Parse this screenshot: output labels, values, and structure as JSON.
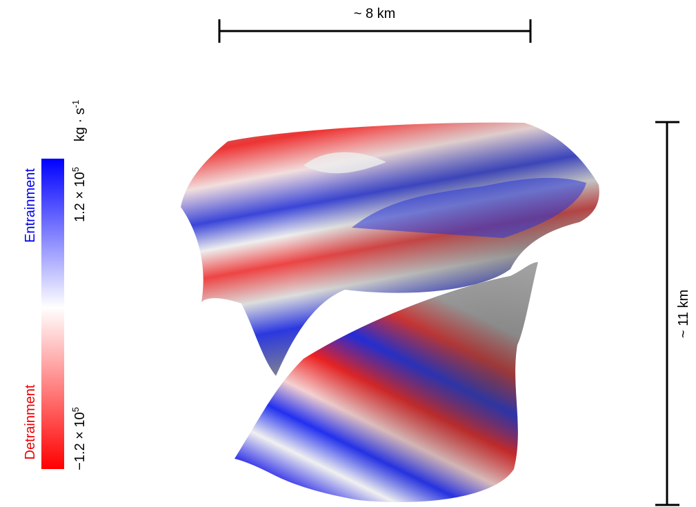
{
  "scale_bars": {
    "horizontal": {
      "label": "~ 8 km"
    },
    "vertical": {
      "label": "~ 11 km"
    }
  },
  "colorbar": {
    "top_label": "Entrainment",
    "bottom_label": "Detrainment",
    "max_label": {
      "base": "1.2 × 10",
      "exponent": "5"
    },
    "min_label": {
      "base": "−1.2 × 10",
      "exponent": "5"
    },
    "unit": {
      "base": "kg · s",
      "exponent": "-1"
    }
  }
}
